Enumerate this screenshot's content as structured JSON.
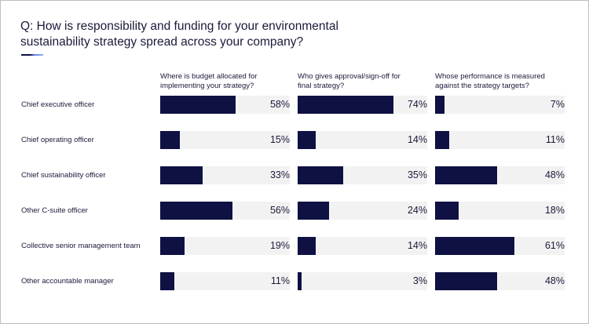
{
  "title": "Q: How is responsibility and funding for your environmental sustainability strategy spread across your company?",
  "colors": {
    "bar": "#0e1142",
    "track": "#f2f2f2",
    "text": "#1a1a3a"
  },
  "chart_data": {
    "type": "bar",
    "orientation": "horizontal",
    "title": "Q: How is responsibility and funding for your environmental sustainability strategy spread across your company?",
    "categories": [
      "Chief executive officer",
      "Chief operating officer",
      "Chief sustainability officer",
      "Other C-suite officer",
      "Collective senior management team",
      "Other accountable manager"
    ],
    "series": [
      {
        "name": "Where is budget allocated for implementing your strategy?",
        "values": [
          58,
          15,
          33,
          56,
          19,
          11
        ]
      },
      {
        "name": "Who gives approval/sign-off for final strategy?",
        "values": [
          74,
          14,
          35,
          24,
          14,
          3
        ]
      },
      {
        "name": "Whose performance is measured against the strategy targets?",
        "values": [
          7,
          11,
          48,
          18,
          61,
          48
        ]
      }
    ],
    "value_suffix": "%",
    "xlim": [
      0,
      100
    ]
  }
}
